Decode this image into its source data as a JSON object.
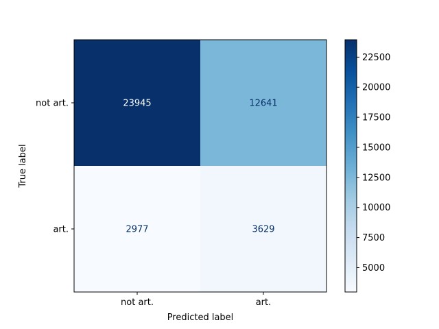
{
  "chart_data": {
    "type": "heatmap",
    "title": "",
    "xlabel": "Predicted label",
    "ylabel": "True label",
    "x_categories": [
      "not art.",
      "art."
    ],
    "y_categories": [
      "not art.",
      "art."
    ],
    "matrix": [
      [
        23945,
        12641
      ],
      [
        2977,
        3629
      ]
    ],
    "colormap": "Blues",
    "colorbar": {
      "min": 2977,
      "max": 23945,
      "ticks": [
        5000,
        7500,
        10000,
        12500,
        15000,
        17500,
        20000,
        22500
      ]
    },
    "grid": false
  }
}
